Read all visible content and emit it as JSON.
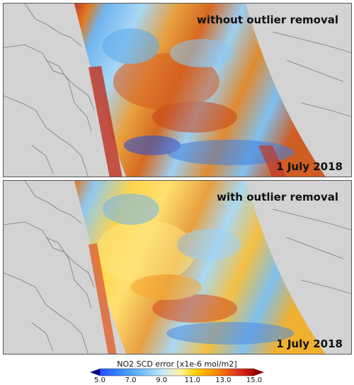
{
  "panels": [
    {
      "title": "without outlier removal",
      "date": "1 July 2018"
    },
    {
      "title": "with outlier removal",
      "date": "1 July 2018"
    }
  ],
  "colorbar": {
    "title": "NO2 SCD error  [x1e-6 mol/m2]",
    "ticks": [
      "5.0",
      "7.0",
      "9.0",
      "11.0",
      "13.0",
      "15.0"
    ],
    "range": [
      5.0,
      15.0
    ],
    "colors": [
      "#00008b",
      "#1f4fff",
      "#5ab4ff",
      "#a9dcf5",
      "#fff3a0",
      "#ffd000",
      "#ff8a00",
      "#e0301e",
      "#8b0000"
    ]
  },
  "colors": {
    "land": "#d3d3d3",
    "borders": "#7a7a7a"
  }
}
